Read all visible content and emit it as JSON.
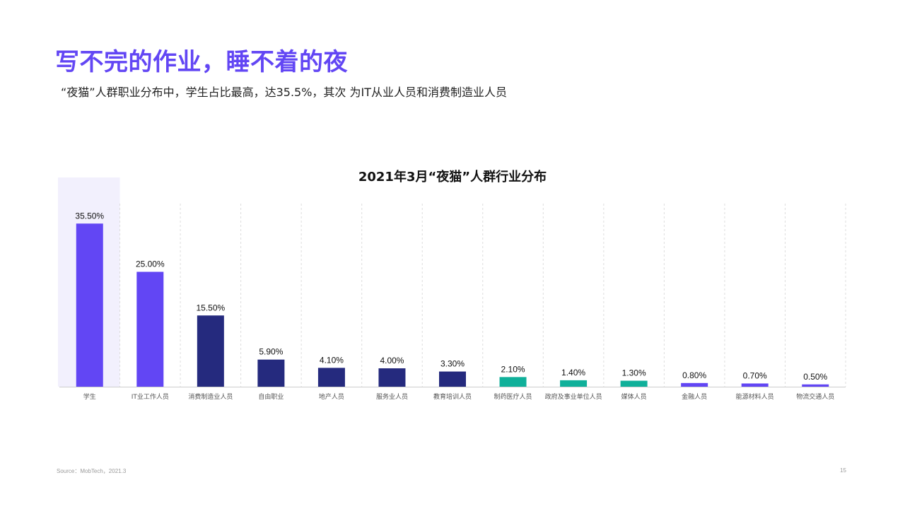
{
  "headline": "写不完的作业，睡不着的夜",
  "subhead": "“夜猫”人群职业分布中，学生占比最高，达35.5%，其次 为IT从业人员和消费制造业人员",
  "footer": {
    "source": "Source：MobTech，2021.3",
    "page_number": "15"
  },
  "colors": {
    "accent": "#6246f4",
    "highlight_band": "#f2f0fd",
    "purple": "#6246f4",
    "navy": "#252a7e",
    "teal": "#10b09a",
    "gridline": "#dddddd",
    "axis": "#cccccc"
  },
  "chart_data": {
    "type": "bar",
    "title": "2021年3月“夜猫”人群行业分布",
    "xlabel": "",
    "ylabel": "",
    "unit": "%",
    "ylim": [
      0,
      40
    ],
    "grid": "vertical-dashed",
    "highlighted_category": "学生",
    "categories": [
      "学生",
      "IT业工作人员",
      "消费制造业人员",
      "自由职业",
      "地产人员",
      "服务业人员",
      "教育培训人员",
      "制药医疗人员",
      "政府及事业单位人员",
      "媒体人员",
      "金融人员",
      "能源材料人员",
      "物流交通人员"
    ],
    "values": [
      35.5,
      25.0,
      15.5,
      5.9,
      4.1,
      4.0,
      3.3,
      2.1,
      1.4,
      1.3,
      0.8,
      0.7,
      0.5
    ],
    "value_labels": [
      "35.50%",
      "25.00%",
      "15.50%",
      "5.90%",
      "4.10%",
      "4.00%",
      "3.30%",
      "2.10%",
      "1.40%",
      "1.30%",
      "0.80%",
      "0.70%",
      "0.50%"
    ],
    "bar_color_groups": [
      "purple",
      "purple",
      "navy",
      "navy",
      "navy",
      "navy",
      "navy",
      "teal",
      "teal",
      "teal",
      "purple",
      "purple",
      "purple"
    ]
  }
}
